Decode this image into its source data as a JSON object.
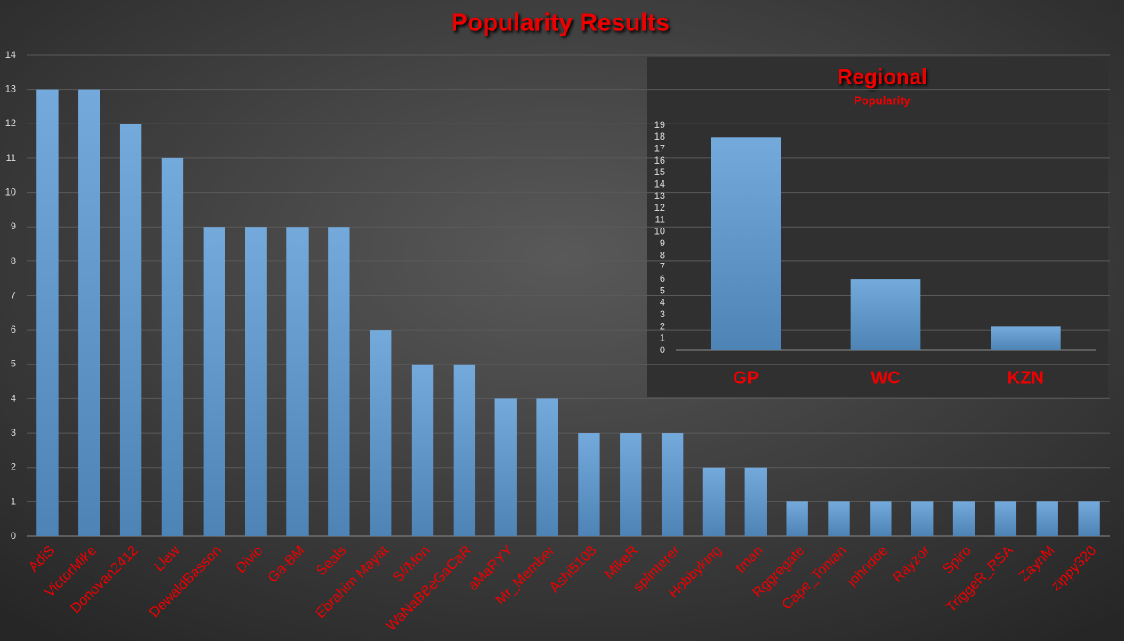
{
  "chart_data": [
    {
      "type": "bar",
      "title": "Popularity Results",
      "categories": [
        "AdiS",
        "VictorMike",
        "Donovan2412",
        "Llew",
        "DewaldBasson",
        "Divio",
        "Ga-BM",
        "Seals",
        "Ebrahim Mayat",
        "S//Mon",
        "WaNaBBeGaCaR",
        "aMaRYY",
        "Mr_Member",
        "Ashi5108",
        "MikeR",
        "splinterer",
        "Hobbyking",
        "tman",
        "Rggregate",
        "Cape_Tonian",
        "johndoe",
        "Rayzor",
        "Spiro",
        "TriggeR_RSA",
        "ZaynM",
        "zippy320"
      ],
      "values": [
        13,
        13,
        12,
        11,
        9,
        9,
        9,
        9,
        6,
        5,
        5,
        4,
        4,
        3,
        3,
        3,
        2,
        2,
        1,
        1,
        1,
        1,
        1,
        1,
        1,
        1
      ],
      "color": "#5b9bd5",
      "ylim": [
        0,
        14
      ],
      "yticks": [
        0,
        1,
        2,
        3,
        4,
        5,
        6,
        7,
        8,
        9,
        10,
        11,
        12,
        13,
        14
      ],
      "grid": true
    },
    {
      "type": "bar",
      "title": "Regional",
      "subtitle": "Popularity",
      "categories": [
        "GP",
        "WC",
        "KZN"
      ],
      "values": [
        18,
        6,
        2
      ],
      "color": "#5b9bd5",
      "ylim": [
        0,
        19
      ],
      "yticks": [
        0,
        1,
        2,
        3,
        4,
        5,
        6,
        7,
        8,
        9,
        10,
        11,
        12,
        13,
        14,
        15,
        16,
        17,
        18,
        19
      ],
      "grid": false
    }
  ]
}
